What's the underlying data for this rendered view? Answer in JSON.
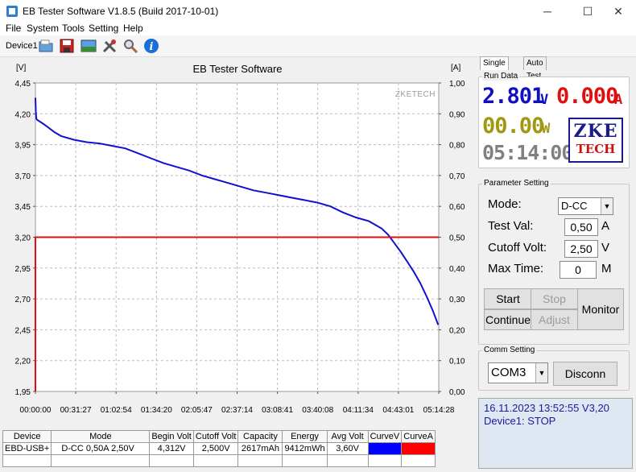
{
  "window": {
    "title": "EB Tester Software V1.8.5 (Build 2017-10-01)",
    "min": "─",
    "max": "☐",
    "close": "✕"
  },
  "menu": [
    "File",
    "System",
    "Tools",
    "Setting",
    "Help"
  ],
  "toolbar": {
    "device": "Device1",
    "icons": [
      "open-folder-icon",
      "save-icon",
      "image-icon",
      "tools-icon",
      "search-icon",
      "info-icon"
    ]
  },
  "chart_data": {
    "type": "line",
    "title": "EB Tester Software",
    "watermark": "ZKETECH",
    "left_unit": "[V]",
    "right_unit": "[A]",
    "y_left": {
      "min": 1.95,
      "max": 4.45,
      "ticks": [
        "4,45",
        "4,20",
        "3,95",
        "3,70",
        "3,45",
        "3,20",
        "2,95",
        "2,70",
        "2,45",
        "2,20",
        "1,95"
      ]
    },
    "y_right": {
      "min": 0.0,
      "max": 1.0,
      "ticks": [
        "1,00",
        "0,90",
        "0,80",
        "0,70",
        "0,60",
        "0,50",
        "0,40",
        "0,30",
        "0,20",
        "0,10",
        "0,00"
      ]
    },
    "x_ticks": [
      "00:00:00",
      "00:31:27",
      "01:02:54",
      "01:34:20",
      "02:05:47",
      "02:37:14",
      "03:08:41",
      "03:40:08",
      "04:11:34",
      "04:43:01",
      "05:14:28"
    ],
    "x_range_min": [
      0,
      314.47
    ],
    "grid": true,
    "series": [
      {
        "axis": "left",
        "color": "#1010d0",
        "x": [
          0,
          0.3,
          0.7,
          1.5,
          3,
          6,
          10,
          15,
          20,
          30,
          40,
          50,
          60,
          70,
          80,
          90,
          100,
          110,
          120,
          130,
          140,
          150,
          160,
          170,
          180,
          190,
          200,
          210,
          220,
          230,
          240,
          250,
          260,
          270,
          275,
          280,
          285,
          290,
          295,
          300,
          305,
          310,
          314
        ],
        "y": [
          4.33,
          4.22,
          4.16,
          4.15,
          4.14,
          4.12,
          4.09,
          4.05,
          4.02,
          3.99,
          3.97,
          3.96,
          3.94,
          3.92,
          3.88,
          3.84,
          3.8,
          3.77,
          3.74,
          3.7,
          3.67,
          3.64,
          3.61,
          3.58,
          3.56,
          3.54,
          3.52,
          3.5,
          3.48,
          3.45,
          3.4,
          3.36,
          3.33,
          3.27,
          3.22,
          3.15,
          3.08,
          3.0,
          2.92,
          2.83,
          2.72,
          2.6,
          2.49
        ]
      },
      {
        "axis": "right",
        "color": "#dd1111",
        "x": [
          0,
          0,
          314.47
        ],
        "y": [
          0.0,
          0.5,
          0.5
        ]
      }
    ]
  },
  "table": {
    "headers": [
      "Device",
      "Mode",
      "Begin Volt",
      "Cutoff Volt",
      "Capacity",
      "Energy",
      "Avg Volt",
      "CurveV",
      "CurveA"
    ],
    "row": [
      "EBD-USB+",
      "D-CC  0,50A  2,50V",
      "4,312V",
      "2,500V",
      "2617mAh",
      "9412mWh",
      "3,60V",
      "",
      ""
    ],
    "curve_colors": [
      "#0000ff",
      "#ff0000"
    ]
  },
  "tabs": [
    "Single Test",
    "Auto Test"
  ],
  "run_data": {
    "title": "Run Data",
    "voltage": "2.801",
    "voltage_unit": "V",
    "current": "0.000",
    "current_unit": "A",
    "power": "00.00",
    "power_unit": "W",
    "time": "05:14:00",
    "logo_top": "ZKE",
    "logo_bottom": "TECH",
    "colors": {
      "voltage": "#1010c0",
      "current": "#e01010",
      "power": "#a09810",
      "time": "#808080"
    }
  },
  "param": {
    "title": "Parameter Setting",
    "mode_label": "Mode:",
    "mode_value": "D-CC",
    "testval_label": "Test Val:",
    "testval_value": "0,50",
    "testval_unit": "A",
    "cutoff_label": "Cutoff Volt:",
    "cutoff_value": "2,50",
    "cutoff_unit": "V",
    "maxtime_label": "Max Time:",
    "maxtime_value": "0",
    "maxtime_unit": "M",
    "start": "Start",
    "stop": "Stop",
    "continue": "Continue",
    "adjust": "Adjust",
    "monitor": "Monitor"
  },
  "comm": {
    "title": "Comm Setting",
    "port": "COM3",
    "disconnect": "Disconn"
  },
  "status": {
    "line1": "16.11.2023 13:52:55  V3,20",
    "line2": "Device1: STOP"
  }
}
